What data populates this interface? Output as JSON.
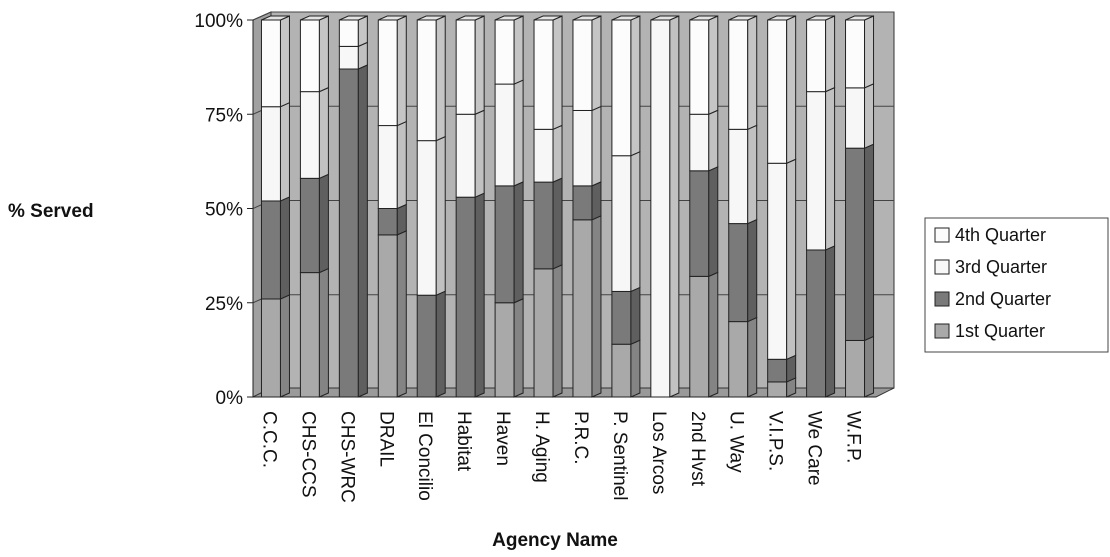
{
  "chart_data": {
    "type": "bar",
    "stacked": true,
    "percent_stacked": true,
    "three_d": true,
    "xlabel": "Agency Name",
    "ylabel": "% Served",
    "ylim": [
      0,
      100
    ],
    "yticks": [
      "0%",
      "25%",
      "50%",
      "75%",
      "100%"
    ],
    "grid": true,
    "legend_position": "right",
    "categories": [
      "C.C.C.",
      "CHS-CCS",
      "CHS-WRC",
      "DRAIL",
      "El Concilio",
      "Habitat",
      "Haven",
      "H. Aging",
      "P.R.C.",
      "P. Sentinel",
      "Los Arcos",
      "2nd Hvst",
      "U. Way",
      "V.I.P.S.",
      "We Care",
      "W.F.P."
    ],
    "series": [
      {
        "name": "1st  Quarter",
        "color": "#a9a9a9",
        "values": [
          26,
          33,
          0,
          43,
          0,
          0,
          25,
          34,
          47,
          14,
          0,
          32,
          20,
          4,
          0,
          15
        ]
      },
      {
        "name": "2nd Quarter",
        "color": "#7a7a7a",
        "values": [
          26,
          25,
          87,
          7,
          27,
          53,
          31,
          23,
          9,
          14,
          0,
          28,
          26,
          6,
          39,
          51
        ]
      },
      {
        "name": "3rd Quarter",
        "color": "#f7f7f7",
        "values": [
          25,
          23,
          6,
          22,
          41,
          22,
          27,
          14,
          20,
          36,
          100,
          15,
          25,
          52,
          42,
          16
        ]
      },
      {
        "name": "4th Quarter",
        "color": "#fcfcfc",
        "values": [
          23,
          19,
          7,
          28,
          32,
          25,
          17,
          29,
          24,
          36,
          0,
          25,
          29,
          38,
          19,
          18
        ]
      }
    ]
  }
}
